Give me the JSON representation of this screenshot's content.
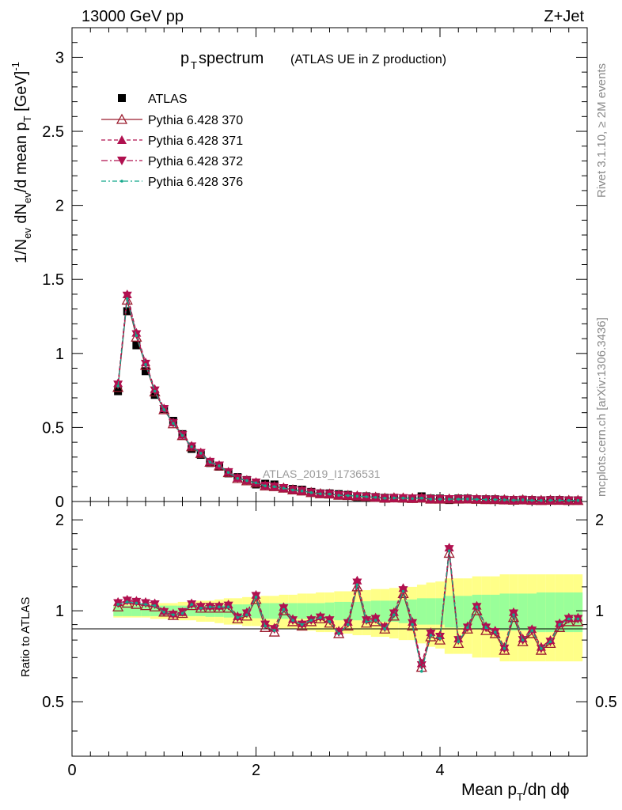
{
  "header": {
    "energy": "13000 GeV pp",
    "process": "Z+Jet"
  },
  "title": {
    "main": "p",
    "main_sub": "T",
    "main_rest": " spectrum",
    "paren": "(ATLAS UE in Z production)"
  },
  "side_labels": {
    "rivet": "Rivet 3.1.10, ≥ 2M events",
    "mcplots": "mcplots.cern.ch [arXiv:1306.3436]"
  },
  "watermark": "ATLAS_2019_I1736531",
  "axes": {
    "ylabel_main": "1/N_ev dN_ev/d mean p_T [GeV]^-1",
    "ylabel_ratio": "Ratio to ATLAS",
    "xlabel": "Mean p_T/dη dϕ",
    "xticks": [
      "0",
      "2",
      "4"
    ],
    "yticks_main": [
      "0",
      "0.5",
      "1",
      "1.5",
      "2",
      "2.5",
      "3"
    ],
    "yticks_ratio": [
      "0.5",
      "1",
      "2"
    ]
  },
  "colors": {
    "atlas": "#000000",
    "p370": "#9b1c2e",
    "p371": "#b0104f",
    "p372": "#b0104f",
    "p376": "#12a88a",
    "band_inner": "#99ff99",
    "band_outer": "#ffff88"
  },
  "chart_data": {
    "type": "scatter",
    "xlabel": "Mean p_T/dη dϕ",
    "ylabel": "1/N_ev dN_ev/d mean p_T [GeV]^-1",
    "xlim": [
      0,
      5.6
    ],
    "ylim": [
      0,
      3.2
    ],
    "ratio_ylim": [
      0.33,
      2.3
    ],
    "ratio_scale": "log",
    "x": [
      0.5,
      0.6,
      0.7,
      0.8,
      0.9,
      1.0,
      1.1,
      1.2,
      1.3,
      1.4,
      1.5,
      1.6,
      1.7,
      1.8,
      1.9,
      2.0,
      2.1,
      2.2,
      2.3,
      2.4,
      2.5,
      2.6,
      2.7,
      2.8,
      2.9,
      3.0,
      3.1,
      3.2,
      3.3,
      3.4,
      3.5,
      3.6,
      3.7,
      3.8,
      3.9,
      4.0,
      4.1,
      4.2,
      4.3,
      4.4,
      4.5,
      4.6,
      4.7,
      4.8,
      4.9,
      5.0,
      5.1,
      5.2,
      5.3,
      5.4,
      5.5
    ],
    "series": [
      {
        "name": "ATLAS",
        "marker": "square",
        "values": [
          0.745,
          1.285,
          1.055,
          0.88,
          0.72,
          0.625,
          0.545,
          0.455,
          0.355,
          0.315,
          0.26,
          0.235,
          0.19,
          0.165,
          0.145,
          0.115,
          0.12,
          0.115,
          0.09,
          0.085,
          0.08,
          0.065,
          0.055,
          0.055,
          0.05,
          0.045,
          0.03,
          0.035,
          0.03,
          0.025,
          0.025,
          0.02,
          0.02,
          0.035,
          0.02,
          0.02,
          0.01,
          0.02,
          0.02,
          0.015,
          0.015,
          0.015,
          0.012,
          0.01,
          0.012,
          0.01,
          0.008,
          0.01,
          0.01,
          0.008,
          0.008
        ],
        "band_inner": [
          0.04,
          0.04,
          0.04,
          0.04,
          0.04,
          0.04,
          0.04,
          0.04,
          0.04,
          0.04,
          0.045,
          0.045,
          0.05,
          0.05,
          0.05,
          0.055,
          0.06,
          0.06,
          0.06,
          0.06,
          0.06,
          0.06,
          0.06,
          0.065,
          0.07,
          0.07,
          0.07,
          0.075,
          0.08,
          0.08,
          0.08,
          0.09,
          0.09,
          0.1,
          0.1,
          0.1,
          0.12,
          0.12,
          0.12,
          0.13,
          0.13,
          0.13,
          0.14,
          0.14,
          0.14,
          0.14,
          0.15,
          0.15,
          0.15,
          0.15,
          0.15
        ],
        "band_outer": [
          0.05,
          0.05,
          0.05,
          0.05,
          0.06,
          0.06,
          0.06,
          0.07,
          0.07,
          0.08,
          0.08,
          0.09,
          0.1,
          0.1,
          0.11,
          0.11,
          0.12,
          0.12,
          0.13,
          0.13,
          0.14,
          0.14,
          0.15,
          0.15,
          0.16,
          0.16,
          0.17,
          0.17,
          0.18,
          0.18,
          0.19,
          0.2,
          0.2,
          0.22,
          0.24,
          0.25,
          0.28,
          0.28,
          0.28,
          0.3,
          0.3,
          0.3,
          0.32,
          0.32,
          0.32,
          0.32,
          0.32,
          0.32,
          0.32,
          0.32,
          0.32
        ]
      },
      {
        "name": "Pythia 6.428 370",
        "marker": "triangle-up-open",
        "values": [
          0.77,
          1.36,
          1.11,
          0.92,
          0.74,
          0.62,
          0.525,
          0.445,
          0.37,
          0.325,
          0.265,
          0.24,
          0.195,
          0.155,
          0.14,
          0.125,
          0.105,
          0.1,
          0.09,
          0.078,
          0.071,
          0.06,
          0.052,
          0.05,
          0.042,
          0.04,
          0.036,
          0.032,
          0.028,
          0.022,
          0.024,
          0.023,
          0.02,
          0.023,
          0.016,
          0.016,
          0.016,
          0.016,
          0.017,
          0.015,
          0.013,
          0.013,
          0.011,
          0.009,
          0.011,
          0.008,
          0.007,
          0.008,
          0.008,
          0.007,
          0.007
        ],
        "ratio": [
          1.03,
          1.06,
          1.05,
          1.04,
          1.03,
          0.99,
          0.965,
          0.98,
          1.04,
          1.02,
          1.02,
          1.02,
          1.02,
          0.94,
          0.96,
          1.09,
          0.88,
          0.85,
          1.0,
          0.92,
          0.89,
          0.92,
          0.94,
          0.91,
          0.84,
          0.89,
          1.2,
          0.91,
          0.92,
          0.87,
          0.96,
          1.14,
          0.89,
          0.65,
          0.82,
          0.8,
          1.55,
          0.78,
          0.87,
          1.0,
          0.86,
          0.84,
          0.74,
          0.95,
          0.79,
          0.84,
          0.74,
          0.78,
          0.88,
          0.92,
          0.92
        ]
      },
      {
        "name": "Pythia 6.428 371",
        "marker": "triangle-up-filled",
        "values": [
          0.8,
          1.4,
          1.14,
          0.94,
          0.76,
          0.63,
          0.535,
          0.45,
          0.375,
          0.33,
          0.27,
          0.245,
          0.2,
          0.16,
          0.145,
          0.13,
          0.108,
          0.102,
          0.092,
          0.08,
          0.073,
          0.062,
          0.054,
          0.052,
          0.044,
          0.041,
          0.037,
          0.033,
          0.029,
          0.023,
          0.025,
          0.024,
          0.021,
          0.024,
          0.017,
          0.017,
          0.017,
          0.017,
          0.018,
          0.016,
          0.014,
          0.014,
          0.012,
          0.01,
          0.012,
          0.009,
          0.008,
          0.009,
          0.009,
          0.008,
          0.008
        ],
        "ratio": [
          1.07,
          1.09,
          1.08,
          1.07,
          1.06,
          1.0,
          0.98,
          0.99,
          1.06,
          1.04,
          1.04,
          1.04,
          1.05,
          0.96,
          0.99,
          1.13,
          0.91,
          0.88,
          1.03,
          0.94,
          0.91,
          0.94,
          0.96,
          0.94,
          0.86,
          0.92,
          1.26,
          0.94,
          0.95,
          0.89,
          0.99,
          1.19,
          0.92,
          0.67,
          0.85,
          0.83,
          1.62,
          0.81,
          0.89,
          1.04,
          0.89,
          0.86,
          0.76,
          0.99,
          0.81,
          0.87,
          0.76,
          0.8,
          0.91,
          0.95,
          0.95
        ]
      },
      {
        "name": "Pythia 6.428 372",
        "marker": "triangle-down-filled",
        "values": [
          0.79,
          1.39,
          1.13,
          0.93,
          0.75,
          0.625,
          0.53,
          0.448,
          0.372,
          0.328,
          0.268,
          0.243,
          0.198,
          0.158,
          0.143,
          0.128,
          0.107,
          0.101,
          0.091,
          0.079,
          0.072,
          0.061,
          0.053,
          0.051,
          0.043,
          0.04,
          0.036,
          0.032,
          0.028,
          0.022,
          0.024,
          0.023,
          0.02,
          0.023,
          0.016,
          0.016,
          0.016,
          0.016,
          0.017,
          0.015,
          0.013,
          0.013,
          0.011,
          0.009,
          0.011,
          0.008,
          0.007,
          0.008,
          0.008,
          0.007,
          0.007
        ],
        "ratio": [
          1.06,
          1.08,
          1.07,
          1.06,
          1.05,
          0.99,
          0.97,
          0.99,
          1.05,
          1.03,
          1.03,
          1.03,
          1.04,
          0.95,
          0.98,
          1.12,
          0.9,
          0.87,
          1.02,
          0.93,
          0.9,
          0.93,
          0.95,
          0.93,
          0.85,
          0.91,
          1.24,
          0.93,
          0.94,
          0.88,
          0.98,
          1.17,
          0.91,
          0.66,
          0.84,
          0.82,
          1.6,
          0.8,
          0.88,
          1.03,
          0.88,
          0.85,
          0.75,
          0.98,
          0.8,
          0.86,
          0.75,
          0.79,
          0.9,
          0.94,
          0.94
        ]
      },
      {
        "name": "Pythia 6.428 376",
        "marker": "dot",
        "values": [
          0.78,
          1.37,
          1.12,
          0.925,
          0.745,
          0.62,
          0.528,
          0.446,
          0.37,
          0.326,
          0.266,
          0.241,
          0.196,
          0.156,
          0.141,
          0.126,
          0.106,
          0.1,
          0.09,
          0.078,
          0.071,
          0.06,
          0.052,
          0.05,
          0.042,
          0.04,
          0.036,
          0.032,
          0.028,
          0.022,
          0.024,
          0.023,
          0.02,
          0.023,
          0.016,
          0.016,
          0.016,
          0.016,
          0.017,
          0.015,
          0.013,
          0.013,
          0.011,
          0.009,
          0.011,
          0.008,
          0.007,
          0.008,
          0.008,
          0.007,
          0.007
        ],
        "ratio": [
          1.05,
          1.07,
          1.06,
          1.05,
          1.04,
          0.99,
          0.97,
          0.98,
          1.05,
          1.02,
          1.03,
          1.03,
          1.03,
          0.95,
          0.97,
          1.11,
          0.89,
          0.86,
          1.01,
          0.93,
          0.9,
          0.93,
          0.95,
          0.92,
          0.84,
          0.9,
          1.22,
          0.92,
          0.93,
          0.87,
          0.97,
          1.16,
          0.9,
          0.63,
          0.83,
          0.81,
          1.58,
          0.79,
          0.88,
          1.03,
          0.88,
          0.85,
          0.75,
          0.97,
          0.8,
          0.86,
          0.75,
          0.79,
          0.9,
          0.94,
          0.94
        ]
      }
    ]
  }
}
